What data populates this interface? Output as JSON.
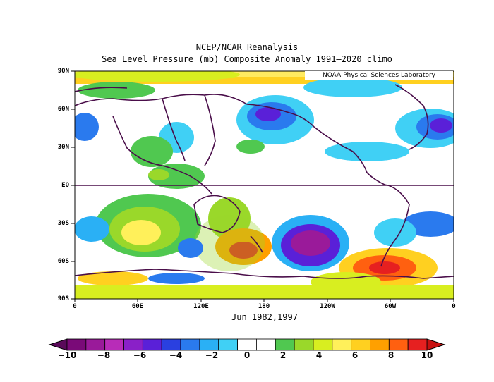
{
  "title": "NCEP/NCAR Reanalysis",
  "subtitle": "Sea Level Pressure (mb) Composite Anomaly 1991–2020 climo",
  "credit": "NOAA Physical Sciences Laboratory",
  "period_label": "Jun 1982,1997",
  "lat_ticks": [
    "90N",
    "60N",
    "30N",
    "EQ",
    "30S",
    "60S",
    "90S"
  ],
  "lon_ticks": [
    "0",
    "60E",
    "120E",
    "180",
    "120W",
    "60W",
    "0"
  ],
  "colorbar": {
    "tick_labels": [
      "−10",
      "−8",
      "−6",
      "−4",
      "−2",
      "0",
      "2",
      "4",
      "6",
      "8",
      "10"
    ],
    "colors": [
      "#7a0a78",
      "#9a1a9a",
      "#b82cb8",
      "#8a20c8",
      "#5a20d8",
      "#2a40e0",
      "#2a7aee",
      "#2ab0f5",
      "#40d0f5",
      "#ffffff",
      "#ffffff",
      "#50c850",
      "#9ad82a",
      "#d8ee20",
      "#fff05a",
      "#ffd020",
      "#ffa000",
      "#ff6010",
      "#e62020"
    ]
  },
  "map_colors": {
    "background": "#ffffff",
    "coastline": "#4a0e4a"
  }
}
